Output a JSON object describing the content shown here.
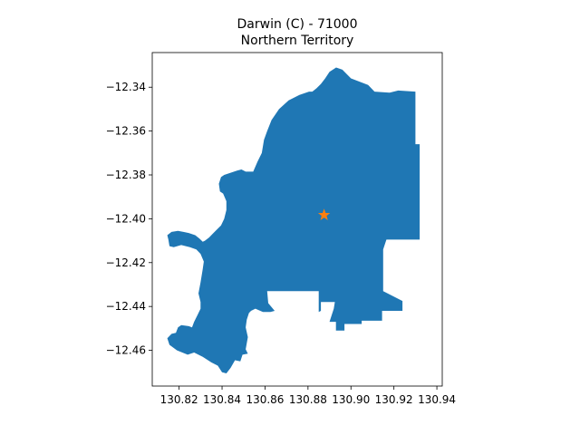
{
  "map": {
    "title_line1": "Darwin (C) - 71000",
    "title_line2": "Northern Territory",
    "xlim": [
      130.8075,
      130.9425
    ],
    "ylim": [
      -12.4763,
      -12.3242
    ],
    "xticks": [
      130.82,
      130.84,
      130.86,
      130.88,
      130.9,
      130.92,
      130.94
    ],
    "xtick_labels": [
      "130.82",
      "130.84",
      "130.86",
      "130.88",
      "130.90",
      "130.92",
      "130.94"
    ],
    "yticks": [
      -12.46,
      -12.44,
      -12.42,
      -12.4,
      -12.38,
      -12.36,
      -12.34
    ],
    "ytick_labels": [
      "−12.46",
      "−12.44",
      "−12.42",
      "−12.40",
      "−12.38",
      "−12.36",
      "−12.34"
    ],
    "region_color": "#1f77b4",
    "marker_color": "#ff7f0e",
    "marker_symbol": "star",
    "marker_point": [
      130.8875,
      -12.3983
    ],
    "region_outline": [
      [
        130.8931,
        -12.331
      ],
      [
        130.896,
        -12.332
      ],
      [
        130.9,
        -12.336
      ],
      [
        130.908,
        -12.339
      ],
      [
        130.911,
        -12.342
      ],
      [
        130.918,
        -12.3425
      ],
      [
        130.922,
        -12.3415
      ],
      [
        130.93,
        -12.342
      ],
      [
        130.93,
        -12.366
      ],
      [
        130.932,
        -12.366
      ],
      [
        130.932,
        -12.4095
      ],
      [
        130.9165,
        -12.4095
      ],
      [
        130.915,
        -12.414
      ],
      [
        130.915,
        -12.433
      ],
      [
        130.924,
        -12.4375
      ],
      [
        130.924,
        -12.442
      ],
      [
        130.9145,
        -12.442
      ],
      [
        130.9145,
        -12.4465
      ],
      [
        130.905,
        -12.4465
      ],
      [
        130.905,
        -12.448
      ],
      [
        130.897,
        -12.448
      ],
      [
        130.897,
        -12.451
      ],
      [
        130.893,
        -12.451
      ],
      [
        130.893,
        -12.447
      ],
      [
        130.89,
        -12.447
      ],
      [
        130.892,
        -12.441
      ],
      [
        130.8925,
        -12.438
      ],
      [
        130.886,
        -12.438
      ],
      [
        130.886,
        -12.442
      ],
      [
        130.885,
        -12.4425
      ],
      [
        130.885,
        -12.433
      ],
      [
        130.861,
        -12.433
      ],
      [
        130.8615,
        -12.4385
      ],
      [
        130.8645,
        -12.442
      ],
      [
        130.8625,
        -12.4425
      ],
      [
        130.859,
        -12.4425
      ],
      [
        130.8555,
        -12.441
      ],
      [
        130.8535,
        -12.442
      ],
      [
        130.8525,
        -12.443
      ],
      [
        130.8515,
        -12.446
      ],
      [
        130.851,
        -12.4495
      ],
      [
        130.852,
        -12.454
      ],
      [
        130.851,
        -12.4595
      ],
      [
        130.852,
        -12.4615
      ],
      [
        130.8495,
        -12.462
      ],
      [
        130.8485,
        -12.465
      ],
      [
        130.846,
        -12.4645
      ],
      [
        130.844,
        -12.468
      ],
      [
        130.842,
        -12.4705
      ],
      [
        130.84,
        -12.47
      ],
      [
        130.838,
        -12.467
      ],
      [
        130.835,
        -12.4655
      ],
      [
        130.831,
        -12.463
      ],
      [
        130.827,
        -12.461
      ],
      [
        130.824,
        -12.462
      ],
      [
        130.819,
        -12.46
      ],
      [
        130.8155,
        -12.4575
      ],
      [
        130.8145,
        -12.4545
      ],
      [
        130.8165,
        -12.4525
      ],
      [
        130.8185,
        -12.452
      ],
      [
        130.8195,
        -12.4495
      ],
      [
        130.821,
        -12.4485
      ],
      [
        130.8245,
        -12.449
      ],
      [
        130.826,
        -12.4495
      ],
      [
        130.827,
        -12.447
      ],
      [
        130.8285,
        -12.444
      ],
      [
        130.83,
        -12.441
      ],
      [
        130.83,
        -12.438
      ],
      [
        130.829,
        -12.434
      ],
      [
        130.83,
        -12.429
      ],
      [
        130.831,
        -12.423
      ],
      [
        130.8315,
        -12.4195
      ],
      [
        130.83,
        -12.416
      ],
      [
        130.828,
        -12.414
      ],
      [
        130.825,
        -12.413
      ],
      [
        130.821,
        -12.412
      ],
      [
        130.8175,
        -12.413
      ],
      [
        130.8155,
        -12.4125
      ],
      [
        130.815,
        -12.4095
      ],
      [
        130.8145,
        -12.4075
      ],
      [
        130.8165,
        -12.406
      ],
      [
        130.8195,
        -12.4055
      ],
      [
        130.822,
        -12.406
      ],
      [
        130.8245,
        -12.4065
      ],
      [
        130.8275,
        -12.4075
      ],
      [
        130.8295,
        -12.409
      ],
      [
        130.831,
        -12.4105
      ],
      [
        130.832,
        -12.41
      ],
      [
        130.834,
        -12.4085
      ],
      [
        130.8355,
        -12.407
      ],
      [
        130.8375,
        -12.405
      ],
      [
        130.8395,
        -12.403
      ],
      [
        130.841,
        -12.4
      ],
      [
        130.842,
        -12.396
      ],
      [
        130.842,
        -12.392
      ],
      [
        130.8405,
        -12.3885
      ],
      [
        130.839,
        -12.3875
      ],
      [
        130.8385,
        -12.384
      ],
      [
        130.8395,
        -12.381
      ],
      [
        130.841,
        -12.38
      ],
      [
        130.844,
        -12.379
      ],
      [
        130.847,
        -12.378
      ],
      [
        130.849,
        -12.3775
      ],
      [
        130.851,
        -12.3785
      ],
      [
        130.8545,
        -12.3785
      ],
      [
        130.8565,
        -12.374
      ],
      [
        130.8585,
        -12.37
      ],
      [
        130.8595,
        -12.364
      ],
      [
        130.861,
        -12.36
      ],
      [
        130.863,
        -12.355
      ],
      [
        130.8665,
        -12.35
      ],
      [
        130.871,
        -12.346
      ],
      [
        130.876,
        -12.3435
      ],
      [
        130.8805,
        -12.342
      ],
      [
        130.882,
        -12.342
      ],
      [
        130.884,
        -12.3405
      ],
      [
        130.886,
        -12.3385
      ],
      [
        130.888,
        -12.336
      ],
      [
        130.89,
        -12.333
      ]
    ]
  }
}
